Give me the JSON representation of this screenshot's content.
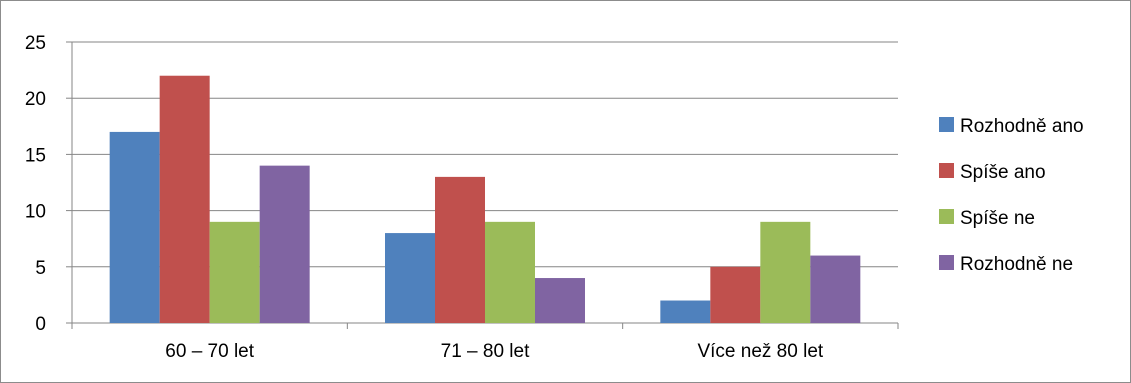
{
  "chart_data": {
    "type": "bar",
    "categories": [
      "60 – 70 let",
      "71 – 80 let",
      "Více než 80 let"
    ],
    "series": [
      {
        "name": "Rozhodně ano",
        "values": [
          17,
          8,
          2
        ],
        "color": "#4F81BD"
      },
      {
        "name": "Spíše ano",
        "values": [
          22,
          13,
          5
        ],
        "color": "#C0504D"
      },
      {
        "name": "Spíše ne",
        "values": [
          9,
          9,
          9
        ],
        "color": "#9BBB59"
      },
      {
        "name": "Rozhodně ne",
        "values": [
          14,
          4,
          6
        ],
        "color": "#8064A2"
      }
    ],
    "ylim": [
      0,
      25
    ],
    "yticks": [
      0,
      5,
      10,
      15,
      20,
      25
    ],
    "grid": true,
    "legend": "right"
  }
}
